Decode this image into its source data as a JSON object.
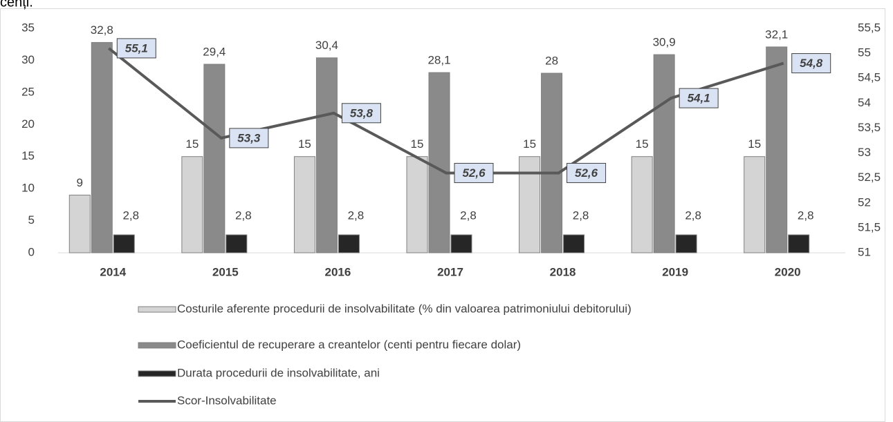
{
  "chart_data": {
    "type": "bar",
    "title": "cenți.",
    "categories": [
      "2014",
      "2015",
      "2016",
      "2017",
      "2018",
      "2019",
      "2020"
    ],
    "series": [
      {
        "name": "Costurile aferente procedurii de insolvabilitate (% din valoarea patrimoniului debitorului)",
        "color": "#d4d4d4",
        "values": [
          9,
          15,
          15,
          15,
          15,
          15,
          15
        ],
        "value_labels": [
          "9",
          "15",
          "15",
          "15",
          "15",
          "15",
          "15"
        ]
      },
      {
        "name": "Coeficientul de recuperare a creantelor (centi pentru fiecare dolar)",
        "color": "#8a8a8a",
        "values": [
          32.8,
          29.4,
          30.4,
          28.1,
          28,
          30.9,
          32.1
        ],
        "value_labels": [
          "32,8",
          "29,4",
          "30,4",
          "28,1",
          "28",
          "30,9",
          "32,1"
        ]
      },
      {
        "name": "Durata procedurii de insolvabilitate, ani",
        "color": "#262626",
        "values": [
          2.8,
          2.8,
          2.8,
          2.8,
          2.8,
          2.8,
          2.8
        ],
        "value_labels": [
          "2,8",
          "2,8",
          "2,8",
          "2,8",
          "2,8",
          "2,8",
          "2,8"
        ]
      },
      {
        "name": "Scor-Insolvabilitate",
        "type": "line",
        "axis": "y2",
        "color": "#595959",
        "values": [
          55.1,
          53.3,
          53.8,
          52.6,
          52.6,
          54.1,
          54.8
        ],
        "value_labels": [
          "55,1",
          "53,3",
          "53,8",
          "52,6",
          "52,6",
          "54,1",
          "54,8"
        ]
      }
    ],
    "ylim": [
      0,
      35
    ],
    "yticks": [
      0,
      5,
      10,
      15,
      20,
      25,
      30,
      35
    ],
    "y2lim": [
      51,
      55.5
    ],
    "y2ticks": [
      51,
      {
        "value": 51.5,
        "label": "51,5"
      },
      52,
      {
        "value": 52.5,
        "label": "52,5"
      },
      53,
      {
        "value": 53.5,
        "label": "53,5"
      },
      54,
      {
        "value": 54.5,
        "label": "54,5"
      },
      55,
      {
        "value": 55.5,
        "label": "55,5"
      }
    ],
    "grid": false,
    "legend": "bottom"
  }
}
